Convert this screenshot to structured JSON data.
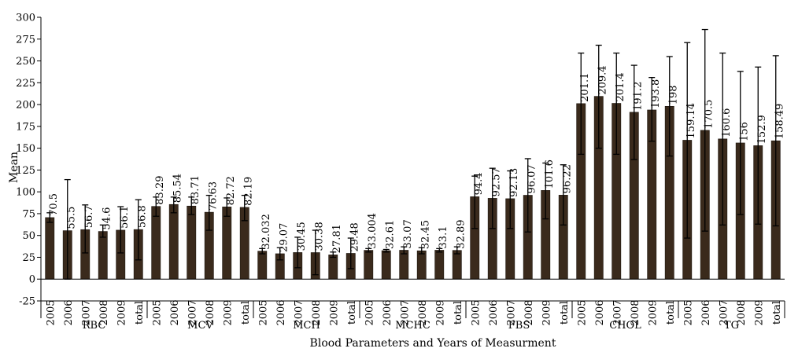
{
  "chart_data": {
    "type": "bar",
    "xlabel": "Blood Parameters and Years  of Measurment",
    "ylabel": "Mean",
    "ylim": [
      -25,
      300
    ],
    "yticks": [
      -25,
      0,
      25,
      50,
      75,
      100,
      125,
      150,
      175,
      200,
      225,
      250,
      275,
      300
    ],
    "bar_color": "#3a2a1c",
    "groups": [
      {
        "name": "RBC",
        "categories": [
          "2005",
          "2006",
          "2007",
          "2008",
          "2009",
          "total"
        ],
        "labels": [
          "70.5",
          "55.5",
          "56.7",
          "54.6",
          "56.1",
          "56.8"
        ],
        "values": [
          70.5,
          55.5,
          56.7,
          54.6,
          56.1,
          56.8
        ],
        "err_low": [
          65,
          0,
          30,
          48,
          30,
          22
        ],
        "err_high": [
          76,
          114,
          85,
          62,
          83,
          91
        ]
      },
      {
        "name": "MCV",
        "categories": [
          "2005",
          "2006",
          "2007",
          "2008",
          "2009",
          "total"
        ],
        "labels": [
          "83.29",
          "85.54",
          "83.71",
          "76.63",
          "82.72",
          "82.19"
        ],
        "values": [
          83.29,
          85.54,
          83.71,
          76.63,
          82.72,
          82.19
        ],
        "err_low": [
          72,
          76,
          74,
          56,
          72,
          67
        ],
        "err_high": [
          94,
          94,
          94,
          96,
          93,
          96
        ]
      },
      {
        "name": "MCH",
        "categories": [
          "2005",
          "2006",
          "2007",
          "2008",
          "2009",
          "total"
        ],
        "labels": [
          "32.032",
          "29.07",
          "30.45",
          "30.38",
          "27.81",
          "29.48"
        ],
        "values": [
          32.032,
          29.07,
          30.45,
          30.38,
          27.81,
          29.48
        ],
        "err_low": [
          29,
          22,
          13,
          5,
          25,
          12
        ],
        "err_high": [
          35,
          36,
          48,
          56,
          31,
          47
        ]
      },
      {
        "name": "MCHC",
        "categories": [
          "2005",
          "2006",
          "2007",
          "2008",
          "2009",
          "total"
        ],
        "labels": [
          "33.004",
          "32.61",
          "33.07",
          "32.45",
          "33.1",
          "32.89"
        ],
        "values": [
          33.004,
          32.61,
          33.07,
          32.45,
          33.1,
          32.89
        ],
        "err_low": [
          31,
          31,
          29,
          29,
          31,
          29
        ],
        "err_high": [
          35,
          34,
          37,
          36,
          35,
          37
        ]
      },
      {
        "name": "FBS",
        "categories": [
          "2005",
          "2006",
          "2007",
          "2008",
          "2009",
          "total"
        ],
        "labels": [
          "94.4",
          "92.57",
          "92.13",
          "96.07",
          "101.6",
          "96.22"
        ],
        "values": [
          94.4,
          92.57,
          92.13,
          96.07,
          101.6,
          96.22
        ],
        "err_low": [
          58,
          58,
          58,
          54,
          69,
          62
        ],
        "err_high": [
          118,
          127,
          124,
          138,
          133,
          131
        ]
      },
      {
        "name": "CHOL",
        "categories": [
          "2005",
          "2006",
          "2007",
          "2008",
          "2009",
          "total"
        ],
        "labels": [
          "201.1",
          "209.4",
          "201.4",
          "191.2",
          "193.8",
          "198"
        ],
        "values": [
          201.1,
          209.4,
          201.4,
          191.2,
          193.8,
          198
        ],
        "err_low": [
          143,
          150,
          143,
          137,
          158,
          141
        ],
        "err_high": [
          259,
          268,
          259,
          245,
          231,
          255
        ]
      },
      {
        "name": "TG",
        "categories": [
          "2005",
          "2006",
          "2007",
          "2008",
          "2009",
          "total"
        ],
        "labels": [
          "159.14",
          "170.5",
          "160.6",
          "156",
          "152.9",
          "158.49"
        ],
        "values": [
          159.14,
          170.5,
          160.6,
          156,
          152.9,
          158.49
        ],
        "err_low": [
          47,
          55,
          62,
          74,
          63,
          61
        ],
        "err_high": [
          271,
          286,
          259,
          238,
          243,
          256
        ]
      }
    ]
  }
}
